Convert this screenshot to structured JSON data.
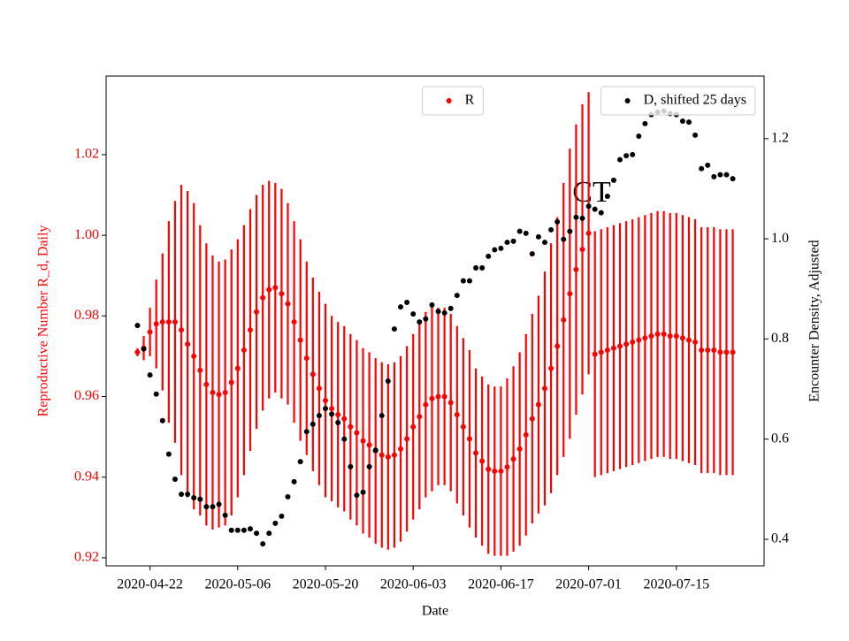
{
  "chart_data": {
    "type": "scatter",
    "x_label": "Date",
    "y_label": "Reproductive Number R_d, Daily",
    "y2_label": "Encounter Density, Adjusted",
    "annotation": "CT",
    "x": [
      "2020-04-20",
      "2020-04-21",
      "2020-04-22",
      "2020-04-23",
      "2020-04-24",
      "2020-04-25",
      "2020-04-26",
      "2020-04-27",
      "2020-04-28",
      "2020-04-29",
      "2020-04-30",
      "2020-05-01",
      "2020-05-02",
      "2020-05-03",
      "2020-05-04",
      "2020-05-05",
      "2020-05-06",
      "2020-05-07",
      "2020-05-08",
      "2020-05-09",
      "2020-05-10",
      "2020-05-11",
      "2020-05-12",
      "2020-05-13",
      "2020-05-14",
      "2020-05-15",
      "2020-05-16",
      "2020-05-17",
      "2020-05-18",
      "2020-05-19",
      "2020-05-20",
      "2020-05-21",
      "2020-05-22",
      "2020-05-23",
      "2020-05-24",
      "2020-05-25",
      "2020-05-26",
      "2020-05-27",
      "2020-05-28",
      "2020-05-29",
      "2020-05-30",
      "2020-05-31",
      "2020-06-01",
      "2020-06-02",
      "2020-06-03",
      "2020-06-04",
      "2020-06-05",
      "2020-06-06",
      "2020-06-07",
      "2020-06-08",
      "2020-06-09",
      "2020-06-10",
      "2020-06-11",
      "2020-06-12",
      "2020-06-13",
      "2020-06-14",
      "2020-06-15",
      "2020-06-16",
      "2020-06-17",
      "2020-06-18",
      "2020-06-19",
      "2020-06-20",
      "2020-06-21",
      "2020-06-22",
      "2020-06-23",
      "2020-06-24",
      "2020-06-25",
      "2020-06-26",
      "2020-06-27",
      "2020-06-28",
      "2020-06-29",
      "2020-06-30",
      "2020-07-01",
      "2020-07-02",
      "2020-07-03",
      "2020-07-04",
      "2020-07-05",
      "2020-07-06",
      "2020-07-07",
      "2020-07-08",
      "2020-07-09",
      "2020-07-10",
      "2020-07-11",
      "2020-07-12",
      "2020-07-13",
      "2020-07-14",
      "2020-07-15",
      "2020-07-16",
      "2020-07-17",
      "2020-07-18",
      "2020-07-19",
      "2020-07-20",
      "2020-07-21",
      "2020-07-22",
      "2020-07-23",
      "2020-07-24"
    ],
    "series": [
      {
        "name": "R",
        "color": "#ff0000",
        "axis": "y",
        "legend": "upper center",
        "values": [
          0.971,
          0.972,
          0.976,
          0.978,
          0.9785,
          0.9785,
          0.9785,
          0.9765,
          0.973,
          0.97,
          0.9665,
          0.963,
          0.961,
          0.9605,
          0.961,
          0.9635,
          0.967,
          0.9715,
          0.9765,
          0.981,
          0.9845,
          0.9865,
          0.987,
          0.9855,
          0.983,
          0.9785,
          0.974,
          0.9695,
          0.9655,
          0.962,
          0.959,
          0.957,
          0.9555,
          0.9545,
          0.9525,
          0.951,
          0.949,
          0.948,
          0.9465,
          0.9455,
          0.945,
          0.9455,
          0.947,
          0.9495,
          0.9525,
          0.955,
          0.958,
          0.9595,
          0.96,
          0.96,
          0.9585,
          0.9555,
          0.9525,
          0.9495,
          0.946,
          0.944,
          0.942,
          0.9415,
          0.9415,
          0.9425,
          0.9445,
          0.947,
          0.9505,
          0.9545,
          0.958,
          0.962,
          0.967,
          0.9725,
          0.979,
          0.9855,
          0.9915,
          0.9965,
          1.0005,
          0.9705,
          0.971,
          0.9715,
          0.972,
          0.9725,
          0.973,
          0.9735,
          0.974,
          0.9745,
          0.975,
          0.9755,
          0.9755,
          0.975,
          0.975,
          0.9745,
          0.974,
          0.9735,
          0.9715,
          0.9715,
          0.9715,
          0.971,
          0.971,
          0.971
        ],
        "errors": [
          0.001,
          0.003,
          0.006,
          0.011,
          0.017,
          0.025,
          0.03,
          0.036,
          0.038,
          0.038,
          0.036,
          0.035,
          0.034,
          0.033,
          0.033,
          0.033,
          0.032,
          0.031,
          0.03,
          0.029,
          0.028,
          0.027,
          0.026,
          0.026,
          0.025,
          0.025,
          0.025,
          0.024,
          0.024,
          0.024,
          0.024,
          0.023,
          0.023,
          0.023,
          0.023,
          0.023,
          0.023,
          0.023,
          0.023,
          0.023,
          0.023,
          0.023,
          0.023,
          0.023,
          0.023,
          0.023,
          0.023,
          0.023,
          0.022,
          0.022,
          0.022,
          0.022,
          0.022,
          0.022,
          0.021,
          0.021,
          0.021,
          0.021,
          0.021,
          0.022,
          0.023,
          0.024,
          0.025,
          0.026,
          0.027,
          0.029,
          0.031,
          0.032,
          0.034,
          0.036,
          0.036,
          0.036,
          0.035,
          0.0305,
          0.0305,
          0.0305,
          0.0305,
          0.0305,
          0.0305,
          0.0305,
          0.0305,
          0.0305,
          0.0305,
          0.0305,
          0.0305,
          0.0305,
          0.0305,
          0.0305,
          0.0305,
          0.0305,
          0.0305,
          0.0305,
          0.0305,
          0.0305,
          0.0305,
          0.0305
        ]
      },
      {
        "name": "D, shifted 25 days",
        "color": "#000000",
        "axis": "y2",
        "legend": "upper right",
        "values": [
          0.827,
          0.78,
          0.728,
          0.69,
          0.637,
          0.57,
          0.52,
          0.49,
          0.49,
          0.483,
          0.48,
          0.465,
          0.465,
          0.47,
          0.448,
          0.418,
          0.418,
          0.418,
          0.421,
          0.412,
          0.391,
          0.412,
          0.432,
          0.446,
          0.485,
          0.515,
          0.555,
          0.615,
          0.63,
          0.647,
          0.661,
          0.65,
          0.633,
          0.6,
          0.545,
          0.488,
          0.494,
          0.545,
          0.578,
          0.647,
          0.716,
          0.82,
          0.864,
          0.873,
          0.85,
          0.834,
          0.84,
          0.868,
          0.855,
          0.852,
          0.861,
          0.887,
          0.916,
          0.916,
          0.942,
          0.942,
          0.965,
          0.978,
          0.981,
          0.993,
          0.995,
          1.015,
          1.011,
          0.97,
          1.004,
          0.993,
          1.018,
          1.034,
          0.999,
          1.015,
          1.043,
          1.041,
          1.065,
          1.059,
          1.052,
          1.085,
          1.117,
          1.158,
          1.166,
          1.168,
          1.205,
          1.23,
          1.248,
          1.253,
          1.255,
          1.25,
          1.248,
          1.235,
          1.233,
          1.207,
          1.14,
          1.147,
          1.124,
          1.128,
          1.128,
          1.12
        ]
      }
    ],
    "xlim": [
      "2020-04-15",
      "2020-07-29"
    ],
    "xticks": [
      "2020-04-22",
      "2020-05-06",
      "2020-05-20",
      "2020-06-03",
      "2020-06-17",
      "2020-07-01",
      "2020-07-15"
    ],
    "ylim": [
      0.918,
      1.0395
    ],
    "yticks": [
      0.92,
      0.94,
      0.96,
      0.98,
      {
        "value": 1.0,
        "label": "1.00"
      },
      1.02
    ],
    "y2lim": [
      0.347,
      1.325
    ],
    "y2ticks": [
      0.4,
      0.6,
      0.8,
      {
        "value": 1.0,
        "label": "1.0"
      },
      1.2
    ],
    "y_color": "#ff0000"
  }
}
